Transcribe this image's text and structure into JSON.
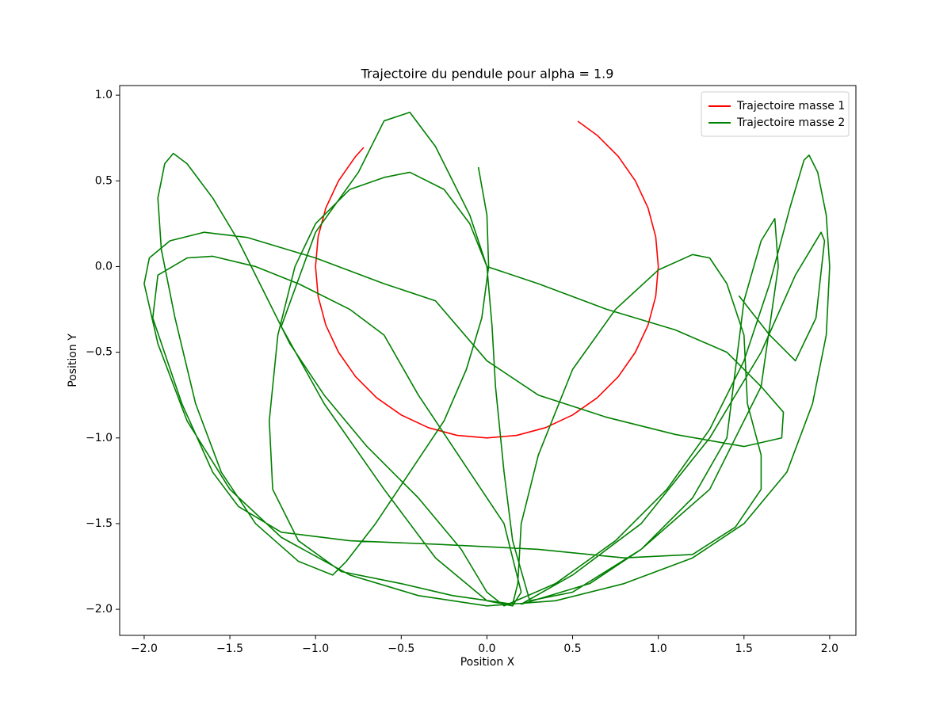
{
  "chart_data": {
    "type": "line",
    "title": "Trajectoire du pendule pour alpha = 1.9",
    "xlabel": "Position X",
    "ylabel": "Position Y",
    "xlim": [
      -2.143,
      2.153
    ],
    "ylim": [
      -2.152,
      1.056
    ],
    "xticks": [
      {
        "value": -2.0,
        "label": "−2.0"
      },
      {
        "value": -1.5,
        "label": "−1.5"
      },
      {
        "value": -1.0,
        "label": "−1.0"
      },
      {
        "value": -0.5,
        "label": "−0.5"
      },
      {
        "value": 0.0,
        "label": "0.0"
      },
      {
        "value": 0.5,
        "label": "0.5"
      },
      {
        "value": 1.0,
        "label": "1.0"
      },
      {
        "value": 1.5,
        "label": "1.5"
      },
      {
        "value": 2.0,
        "label": "2.0"
      }
    ],
    "yticks": [
      {
        "value": -2.0,
        "label": "−2.0"
      },
      {
        "value": -1.5,
        "label": "−1.5"
      },
      {
        "value": -1.0,
        "label": "−1.0"
      },
      {
        "value": -0.5,
        "label": "−0.5"
      },
      {
        "value": 0.0,
        "label": "0.0"
      },
      {
        "value": 0.5,
        "label": "0.5"
      },
      {
        "value": 1.0,
        "label": "1.0"
      }
    ],
    "legend": "upper right",
    "series": [
      {
        "name": "Trajectoire masse 1",
        "color": "#ff0000",
        "x": [
          0.53,
          0.643,
          0.766,
          0.866,
          0.94,
          0.985,
          1,
          0.985,
          0.94,
          0.866,
          0.766,
          0.643,
          0.5,
          0.342,
          0.174,
          0,
          -0.174,
          -0.342,
          -0.5,
          -0.643,
          -0.766,
          -0.866,
          -0.94,
          -0.985,
          -1,
          -0.985,
          -0.94,
          -0.866,
          -0.766,
          -0.719
        ],
        "y": [
          0.848,
          0.766,
          0.643,
          0.5,
          0.342,
          0.174,
          0,
          -0.174,
          -0.342,
          -0.5,
          -0.643,
          -0.766,
          -0.866,
          -0.94,
          -0.985,
          -1,
          -0.985,
          -0.94,
          -0.866,
          -0.766,
          -0.643,
          -0.5,
          -0.342,
          -0.174,
          0,
          0.174,
          0.342,
          0.5,
          0.643,
          0.695
        ]
      },
      {
        "name": "Trajectoire masse 2",
        "color": "#008000",
        "x": [
          -0.05,
          0.0,
          0.01,
          -0.03,
          -0.12,
          -0.25,
          -0.45,
          -0.65,
          -0.82,
          -0.9,
          -1.1,
          -1.35,
          -1.55,
          -1.7,
          -1.82,
          -1.9,
          -1.92,
          -1.88,
          -1.83,
          -1.75,
          -1.6,
          -1.45,
          -1.3,
          -1.15,
          -0.95,
          -0.7,
          -0.4,
          -0.15,
          0.0,
          0.1,
          0.4,
          0.75,
          1.05,
          1.3,
          1.5,
          1.65,
          1.77,
          1.85,
          1.88,
          1.93,
          1.98,
          2.0,
          1.98,
          1.9,
          1.75,
          1.5,
          1.2,
          0.8,
          0.4,
          0.0,
          -0.4,
          -0.8,
          -1.2,
          -1.5,
          -1.75,
          -1.92,
          -2.0,
          -1.97,
          -1.85,
          -1.65,
          -1.4,
          -1.0,
          -0.6,
          -0.3,
          0.0,
          0.3,
          0.7,
          1.1,
          1.5,
          1.72,
          1.73,
          1.6,
          1.4,
          1.1,
          0.7,
          0.3,
          0.0,
          -0.1,
          -0.25,
          -0.45,
          -0.6,
          -0.8,
          -1.0,
          -1.12,
          -1.22,
          -1.27,
          -1.25,
          -1.1,
          -0.85,
          -0.5,
          -0.2,
          0.15,
          0.18,
          0.2,
          0.3,
          0.5,
          0.75,
          1.0,
          1.2,
          1.3,
          1.4,
          1.5,
          1.52,
          1.6,
          1.6,
          1.45,
          1.2,
          0.8,
          0.3,
          -0.3,
          -0.8,
          -1.2,
          -1.45,
          -1.6,
          -1.78,
          -1.95,
          -1.92,
          -1.75,
          -1.6,
          -1.35,
          -1.1,
          -0.8,
          -0.6,
          -0.4,
          -0.1,
          0.1,
          0.2,
          0.15,
          0.0,
          -0.3,
          -0.6,
          -0.95,
          -1.2,
          -1.0,
          -0.75,
          -0.6,
          -0.45,
          -0.3,
          -0.1,
          0.0,
          0.03,
          0.05,
          0.1,
          0.15,
          0.25,
          0.5,
          0.9,
          1.3,
          1.6,
          1.7,
          1.68,
          1.6,
          1.5,
          1.45,
          1.4,
          1.2,
          0.9,
          0.6,
          0.2,
          0.5,
          0.9,
          1.3,
          1.6,
          1.8,
          1.95,
          1.97,
          1.92,
          1.8,
          1.65,
          1.47
        ],
        "y": [
          0.58,
          0.3,
          0.0,
          -0.3,
          -0.6,
          -0.9,
          -1.2,
          -1.5,
          -1.72,
          -1.8,
          -1.72,
          -1.5,
          -1.2,
          -0.8,
          -0.3,
          0.1,
          0.4,
          0.6,
          0.66,
          0.6,
          0.4,
          0.15,
          -0.15,
          -0.45,
          -0.75,
          -1.05,
          -1.35,
          -1.65,
          -1.9,
          -1.98,
          -1.85,
          -1.6,
          -1.3,
          -0.95,
          -0.55,
          -0.1,
          0.35,
          0.62,
          0.65,
          0.55,
          0.3,
          0.0,
          -0.4,
          -0.8,
          -1.2,
          -1.5,
          -1.7,
          -1.85,
          -1.95,
          -1.98,
          -1.92,
          -1.8,
          -1.58,
          -1.3,
          -0.9,
          -0.45,
          -0.1,
          0.05,
          0.15,
          0.2,
          0.17,
          0.05,
          -0.1,
          -0.2,
          -0.55,
          -0.75,
          -0.88,
          -0.98,
          -1.05,
          -1.0,
          -0.85,
          -0.7,
          -0.5,
          -0.37,
          -0.25,
          -0.1,
          0.0,
          0.25,
          0.45,
          0.55,
          0.52,
          0.45,
          0.25,
          0.0,
          -0.4,
          -0.9,
          -1.3,
          -1.6,
          -1.78,
          -1.85,
          -1.92,
          -1.97,
          -1.85,
          -1.5,
          -1.1,
          -0.6,
          -0.25,
          -0.02,
          0.07,
          0.05,
          -0.1,
          -0.4,
          -0.8,
          -1.1,
          -1.3,
          -1.52,
          -1.68,
          -1.7,
          -1.65,
          -1.62,
          -1.6,
          -1.55,
          -1.4,
          -1.2,
          -0.8,
          -0.3,
          -0.05,
          0.05,
          0.06,
          0.0,
          -0.1,
          -0.25,
          -0.4,
          -0.75,
          -1.2,
          -1.5,
          -1.9,
          -1.98,
          -1.95,
          -1.7,
          -1.3,
          -0.8,
          -0.35,
          0.2,
          0.55,
          0.85,
          0.9,
          0.7,
          0.3,
          0.0,
          -0.35,
          -0.7,
          -1.2,
          -1.6,
          -1.95,
          -1.9,
          -1.65,
          -1.3,
          -0.7,
          0.0,
          0.28,
          0.15,
          -0.2,
          -0.6,
          -1.0,
          -1.35,
          -1.65,
          -1.85,
          -1.97,
          -1.8,
          -1.5,
          -1.0,
          -0.5,
          -0.05,
          0.2,
          0.15,
          -0.3,
          -0.55,
          -0.4,
          -0.17
        ]
      }
    ]
  }
}
